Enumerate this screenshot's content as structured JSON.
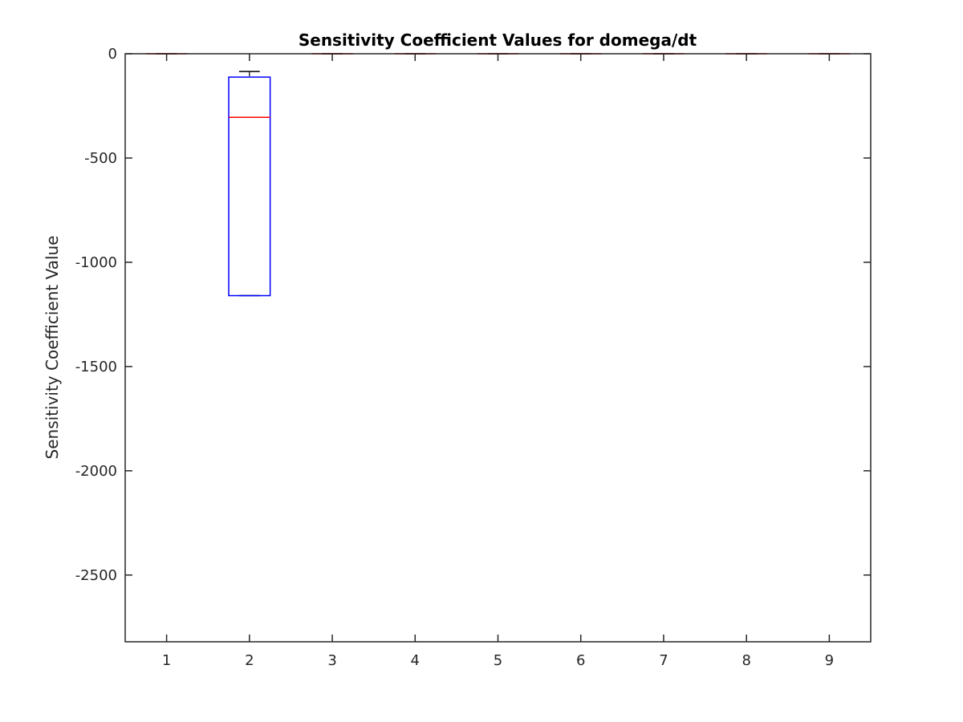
{
  "chart_data": {
    "type": "box",
    "title": "Sensitivity Coefficient Values for domega/dt",
    "xlabel": "",
    "ylabel": "Sensitivity Coefficient Value",
    "categories": [
      "1",
      "2",
      "3",
      "4",
      "5",
      "6",
      "7",
      "8",
      "9"
    ],
    "ylim": [
      -2820,
      0
    ],
    "yticks": [
      0,
      -500,
      -1000,
      -1500,
      -2000,
      -2500
    ],
    "ytick_labels": [
      "0",
      "-500",
      "-1000",
      "-1500",
      "-2000",
      "-2500"
    ],
    "boxes": [
      {
        "category": "1",
        "upper_whisker": 0,
        "q3": 0,
        "median": 0,
        "q1": 0,
        "lower_whisker": 0
      },
      {
        "category": "2",
        "upper_whisker": -85,
        "q3": -112,
        "median": -305,
        "q1": -1160,
        "lower_whisker": -1160
      },
      {
        "category": "3",
        "upper_whisker": 0,
        "q3": 0,
        "median": 0,
        "q1": 0,
        "lower_whisker": 0
      },
      {
        "category": "4",
        "upper_whisker": 0,
        "q3": 0,
        "median": 0,
        "q1": 0,
        "lower_whisker": 0
      },
      {
        "category": "5",
        "upper_whisker": 0,
        "q3": 0,
        "median": 0,
        "q1": 0,
        "lower_whisker": 0
      },
      {
        "category": "6",
        "upper_whisker": 0,
        "q3": 0,
        "median": 0,
        "q1": 0,
        "lower_whisker": 0
      },
      {
        "category": "7",
        "upper_whisker": 0,
        "q3": 0,
        "median": 0,
        "q1": 0,
        "lower_whisker": 0
      },
      {
        "category": "8",
        "upper_whisker": 0,
        "q3": 0,
        "median": 0,
        "q1": 0,
        "lower_whisker": 0
      },
      {
        "category": "9",
        "upper_whisker": 0,
        "q3": 0,
        "median": 0,
        "q1": 0,
        "lower_whisker": 0
      }
    ],
    "grid": false,
    "colors": {
      "box": "#0000ff",
      "median": "#ff0000",
      "whisker": "#000000",
      "axis": "#262626"
    }
  }
}
